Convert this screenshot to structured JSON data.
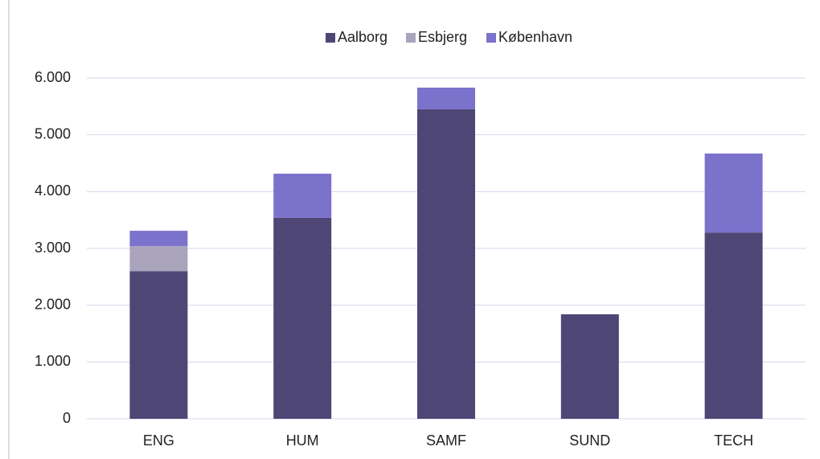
{
  "chart_data": {
    "type": "stacked_bar",
    "categories": [
      "ENG",
      "HUM",
      "SAMF",
      "SUND",
      "TECH"
    ],
    "series": [
      {
        "name": "Aalborg",
        "color": "#4e4775",
        "values": [
          2600,
          3540,
          5450,
          1840,
          3280
        ]
      },
      {
        "name": "Esbjerg",
        "color": "#a9a4bc",
        "values": [
          440,
          0,
          0,
          0,
          0
        ]
      },
      {
        "name": "København",
        "color": "#7b72cc",
        "values": [
          270,
          775,
          380,
          0,
          1390
        ]
      }
    ],
    "ylim": [
      0,
      6000
    ],
    "yticks": [
      0,
      {
        "value": 1000,
        "label": "1.000"
      },
      {
        "value": 2000,
        "label": "2.000"
      },
      {
        "value": 3000,
        "label": "3.000"
      },
      {
        "value": 4000,
        "label": "4.000"
      },
      {
        "value": 5000,
        "label": "5.000"
      },
      {
        "value": 6000,
        "label": "6.000"
      }
    ],
    "grid": true,
    "legend": "top"
  }
}
